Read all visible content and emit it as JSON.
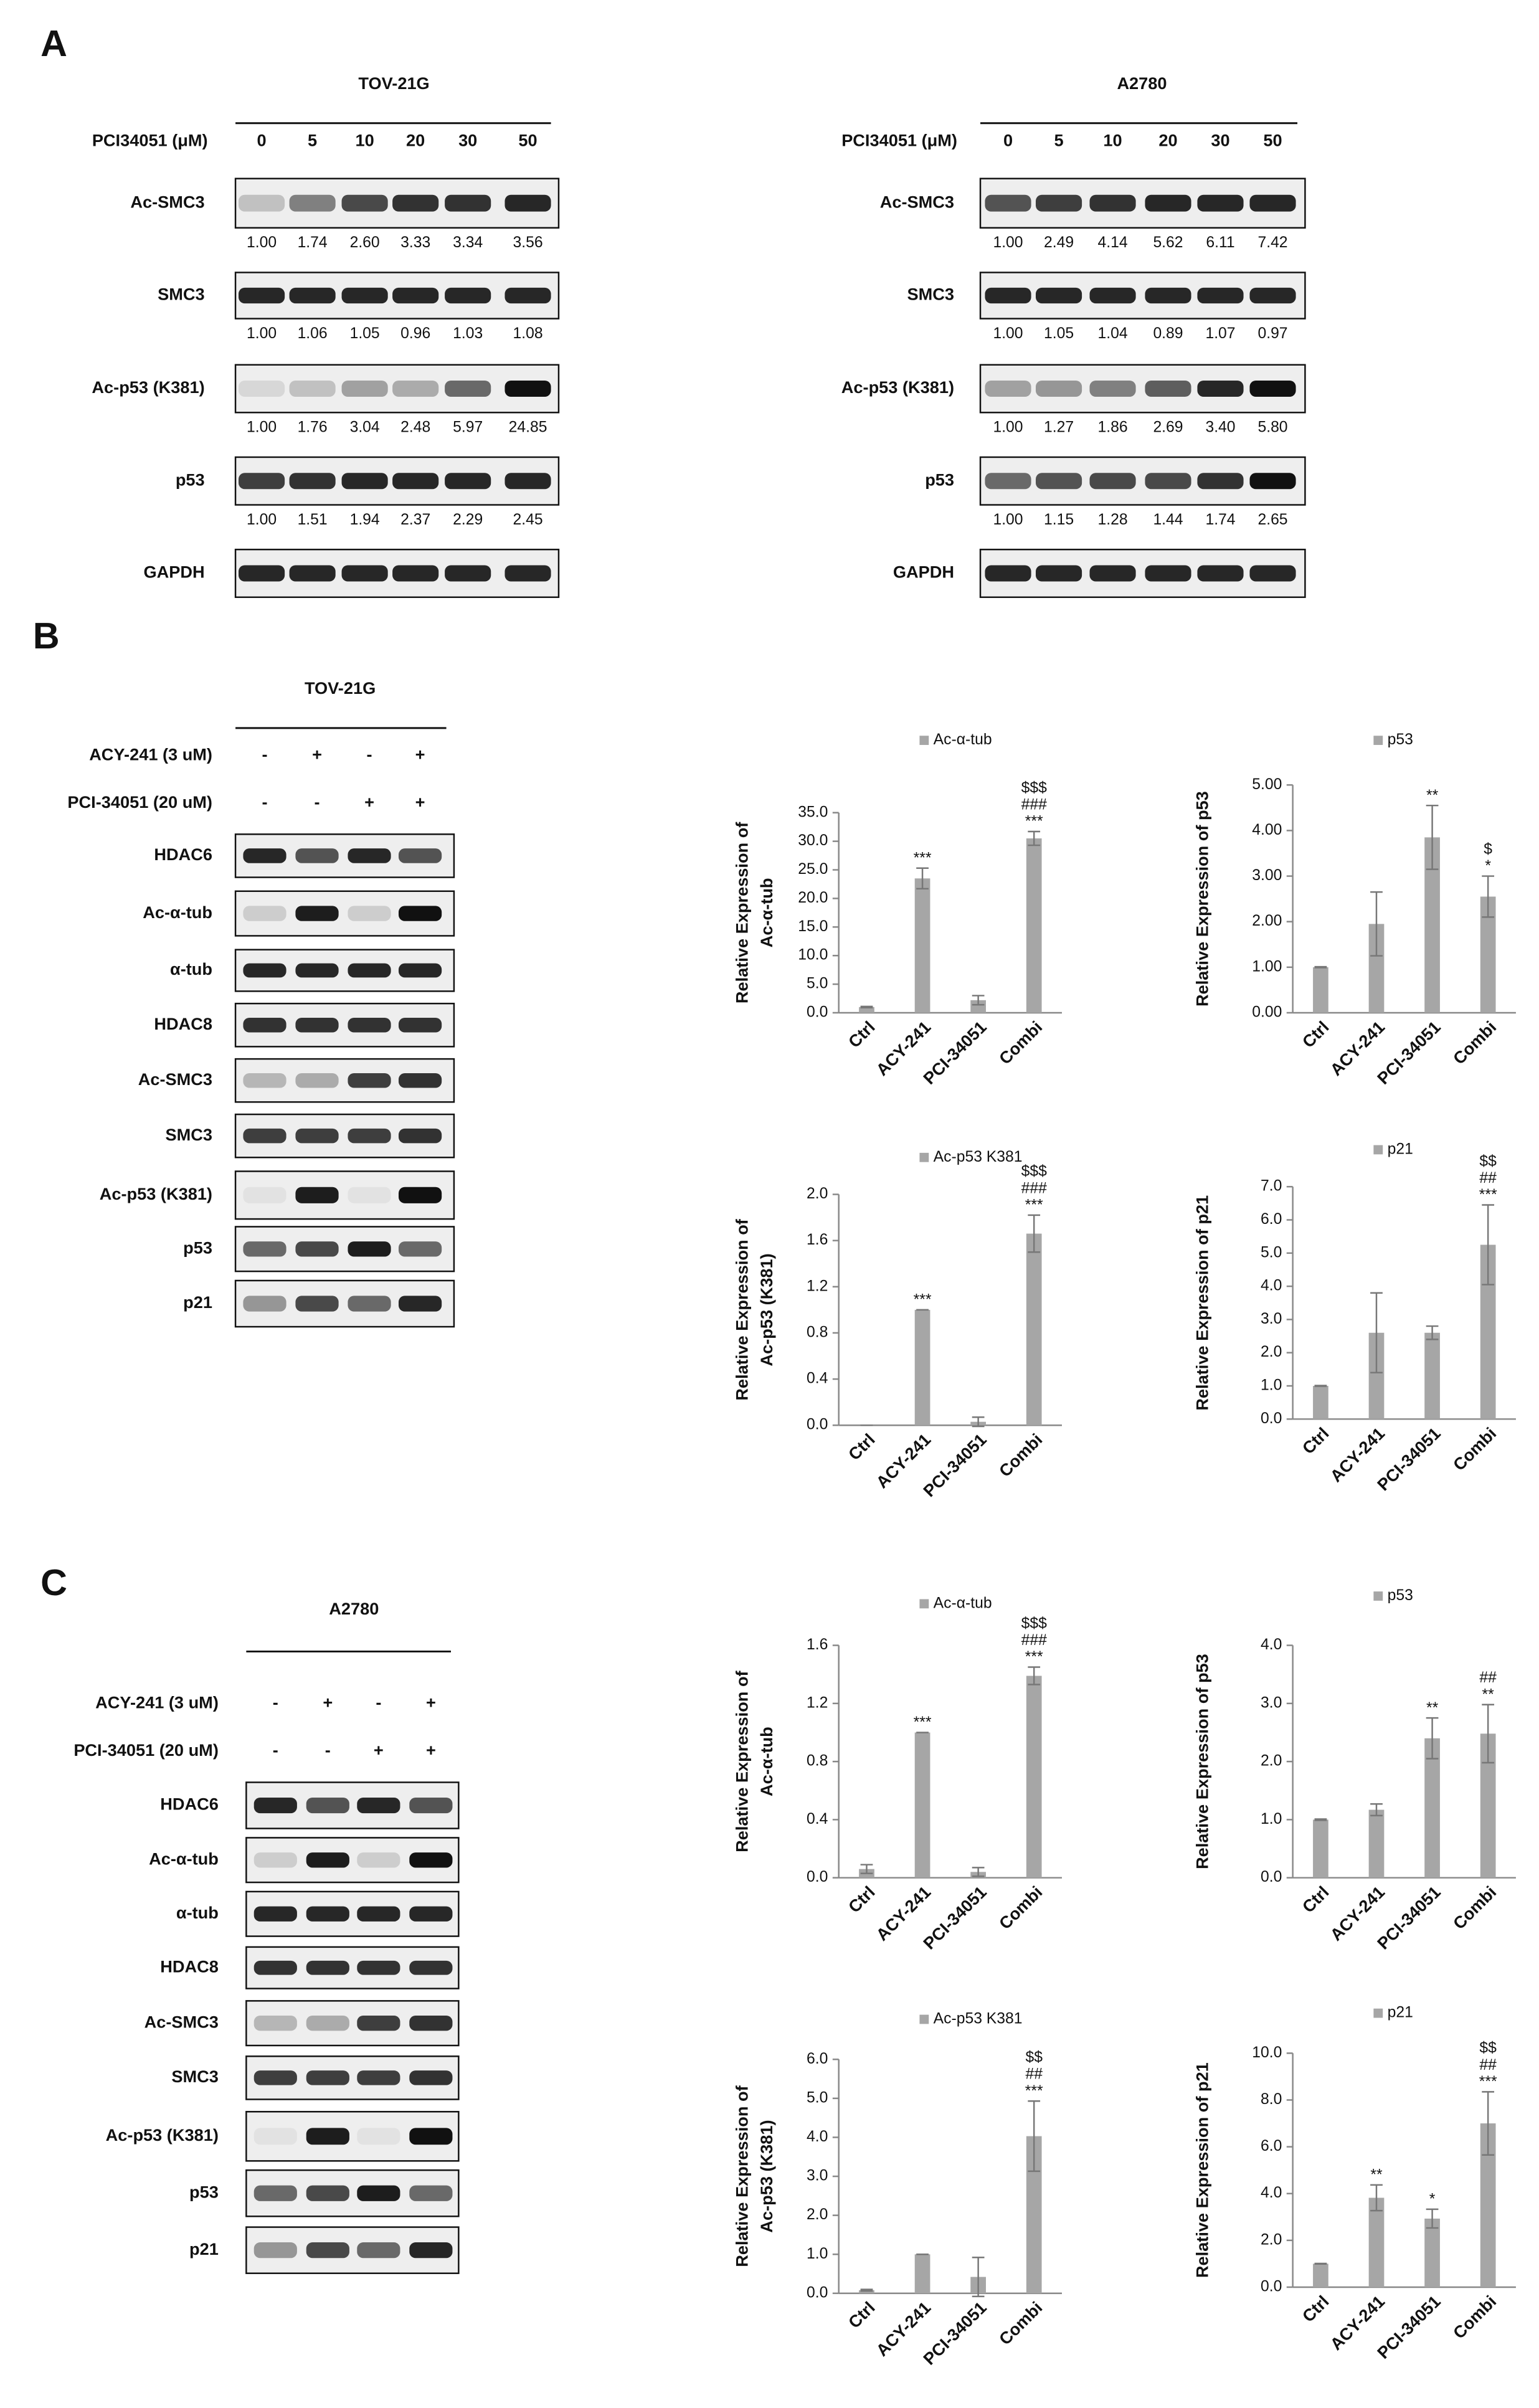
{
  "panels": {
    "A": {
      "label": "A",
      "blots": [
        {
          "cell_line": "TOV-21G",
          "treatment_label": "PCI34051 (μM)",
          "doses": [
            "0",
            "5",
            "10",
            "20",
            "30",
            "50"
          ],
          "rows": [
            {
              "name": "Ac-SMC3",
              "quant": [
                "1.00",
                "1.74",
                "2.60",
                "3.33",
                "3.34",
                "3.56"
              ]
            },
            {
              "name": "SMC3",
              "quant": [
                "1.00",
                "1.06",
                "1.05",
                "0.96",
                "1.03",
                "1.08"
              ]
            },
            {
              "name": "Ac-p53 (K381)",
              "quant": [
                "1.00",
                "1.76",
                "3.04",
                "2.48",
                "5.97",
                "24.85"
              ]
            },
            {
              "name": "p53",
              "quant": [
                "1.00",
                "1.51",
                "1.94",
                "2.37",
                "2.29",
                "2.45"
              ]
            },
            {
              "name": "GAPDH"
            }
          ]
        },
        {
          "cell_line": "A2780",
          "treatment_label": "PCI34051 (μM)",
          "doses": [
            "0",
            "5",
            "10",
            "20",
            "30",
            "50"
          ],
          "rows": [
            {
              "name": "Ac-SMC3",
              "quant": [
                "1.00",
                "2.49",
                "4.14",
                "5.62",
                "6.11",
                "7.42"
              ]
            },
            {
              "name": "SMC3",
              "quant": [
                "1.00",
                "1.05",
                "1.04",
                "0.89",
                "1.07",
                "0.97"
              ]
            },
            {
              "name": "Ac-p53 (K381)",
              "quant": [
                "1.00",
                "1.27",
                "1.86",
                "2.69",
                "3.40",
                "5.80"
              ]
            },
            {
              "name": "p53",
              "quant": [
                "1.00",
                "1.15",
                "1.28",
                "1.44",
                "1.74",
                "2.65"
              ]
            },
            {
              "name": "GAPDH"
            }
          ]
        }
      ]
    },
    "B": {
      "label": "B",
      "blot": {
        "cell_line": "TOV-21G",
        "treatments": [
          {
            "label": "ACY-241 (3 uM)",
            "signs": [
              "-",
              "+",
              "-",
              "+"
            ]
          },
          {
            "label": "PCI-34051 (20 uM)",
            "signs": [
              "-",
              "-",
              "+",
              "+"
            ]
          }
        ],
        "rows": [
          "HDAC6",
          "Ac-α-tub",
          "α-tub",
          "HDAC8",
          "Ac-SMC3",
          "SMC3",
          "Ac-p53 (K381)",
          "p53",
          "p21"
        ]
      }
    },
    "C": {
      "label": "C",
      "blot": {
        "cell_line": "A2780",
        "treatments": [
          {
            "label": "ACY-241 (3 uM)",
            "signs": [
              "-",
              "+",
              "-",
              "+"
            ]
          },
          {
            "label": "PCI-34051 (20 uM)",
            "signs": [
              "-",
              "-",
              "+",
              "+"
            ]
          }
        ],
        "rows": [
          "HDAC6",
          "Ac-α-tub",
          "α-tub",
          "HDAC8",
          "Ac-SMC3",
          "SMC3",
          "Ac-p53 (K381)",
          "p53",
          "p21"
        ]
      }
    }
  },
  "chart_data": [
    {
      "type": "bar",
      "ylabel": [
        "Relative Expression of",
        "Ac-α-tub"
      ],
      "categories": [
        "Ctrl",
        "ACY-241",
        "PCI-34051",
        "Combi"
      ],
      "series": [
        {
          "name": "Ac-α-tub",
          "color": "#a6a6a6",
          "values": [
            1.0,
            23.5,
            2.2,
            30.5
          ],
          "errors": [
            0.1,
            1.8,
            0.8,
            1.2
          ]
        }
      ],
      "annotations": [
        [],
        [
          "***"
        ],
        [],
        [
          "***",
          "###",
          "$$$"
        ]
      ],
      "ylim": [
        0,
        35
      ],
      "yticks": [
        {
          "value": 0,
          "label": "0.0"
        },
        {
          "value": 5,
          "label": "5.0"
        },
        {
          "value": 10,
          "label": "10.0"
        },
        {
          "value": 15,
          "label": "15.0"
        },
        {
          "value": 20,
          "label": "20.0"
        },
        {
          "value": 25,
          "label": "25.0"
        },
        {
          "value": 30,
          "label": "30.0"
        },
        {
          "value": 35,
          "label": "35.0"
        }
      ]
    },
    {
      "type": "bar",
      "ylabel": [
        "Relative Expression of p53"
      ],
      "categories": [
        "Ctrl",
        "ACY-241",
        "PCI-34051",
        "Combi"
      ],
      "series": [
        {
          "name": "p53",
          "color": "#a6a6a6",
          "values": [
            1.0,
            1.95,
            3.85,
            2.55
          ],
          "errors": [
            0.01,
            0.7,
            0.7,
            0.45
          ]
        }
      ],
      "annotations": [
        [],
        [],
        [
          "**"
        ],
        [
          "*",
          "$"
        ]
      ],
      "ylim": [
        0,
        5
      ],
      "yticks": [
        {
          "value": 0,
          "label": "0.00"
        },
        {
          "value": 1,
          "label": "1.00"
        },
        {
          "value": 2,
          "label": "2.00"
        },
        {
          "value": 3,
          "label": "3.00"
        },
        {
          "value": 4,
          "label": "4.00"
        },
        {
          "value": 5,
          "label": "5.00"
        }
      ]
    },
    {
      "type": "bar",
      "ylabel": [
        "Relative Expression of",
        "Ac-p53 (K381)"
      ],
      "categories": [
        "Ctrl",
        "ACY-241",
        "PCI-34051",
        "Combi"
      ],
      "series": [
        {
          "name": "Ac-p53 K381",
          "color": "#a6a6a6",
          "values": [
            0.0,
            1.0,
            0.03,
            1.66
          ],
          "errors": [
            0.0,
            0.0,
            0.04,
            0.16
          ]
        }
      ],
      "annotations": [
        [],
        [
          "***"
        ],
        [],
        [
          "***",
          "###",
          "$$$"
        ]
      ],
      "ylim": [
        0,
        2
      ],
      "yticks": [
        {
          "value": 0,
          "label": "0.0"
        },
        {
          "value": 0.4,
          "label": "0.4"
        },
        {
          "value": 0.8,
          "label": "0.8"
        },
        {
          "value": 1.2,
          "label": "1.2"
        },
        {
          "value": 1.6,
          "label": "1.6"
        },
        {
          "value": 2,
          "label": "2.0"
        }
      ]
    },
    {
      "type": "bar",
      "ylabel": [
        "Relative Expression of p21"
      ],
      "categories": [
        "Ctrl",
        "ACY-241",
        "PCI-34051",
        "Combi"
      ],
      "series": [
        {
          "name": "p21",
          "color": "#a6a6a6",
          "values": [
            1.0,
            2.6,
            2.6,
            5.25
          ],
          "errors": [
            0.01,
            1.2,
            0.2,
            1.2
          ]
        }
      ],
      "annotations": [
        [],
        [],
        [],
        [
          "***",
          "##",
          "$$"
        ]
      ],
      "ylim": [
        0,
        7
      ],
      "yticks": [
        {
          "value": 0,
          "label": "0.0"
        },
        {
          "value": 1,
          "label": "1.0"
        },
        {
          "value": 2,
          "label": "2.0"
        },
        {
          "value": 3,
          "label": "3.0"
        },
        {
          "value": 4,
          "label": "4.0"
        },
        {
          "value": 5,
          "label": "5.0"
        },
        {
          "value": 6,
          "label": "6.0"
        },
        {
          "value": 7,
          "label": "7.0"
        }
      ]
    },
    {
      "type": "bar",
      "ylabel": [
        "Relative Expression of",
        "Ac-α-tub"
      ],
      "categories": [
        "Ctrl",
        "ACY-241",
        "PCI-34051",
        "Combi"
      ],
      "series": [
        {
          "name": "Ac-α-tub",
          "color": "#a6a6a6",
          "values": [
            0.06,
            1.0,
            0.04,
            1.39
          ],
          "errors": [
            0.03,
            0.0,
            0.03,
            0.06
          ]
        }
      ],
      "annotations": [
        [],
        [
          "***"
        ],
        [],
        [
          "***",
          "###",
          "$$$"
        ]
      ],
      "ylim": [
        0,
        1.6
      ],
      "yticks": [
        {
          "value": 0,
          "label": "0.0"
        },
        {
          "value": 0.4,
          "label": "0.4"
        },
        {
          "value": 0.8,
          "label": "0.8"
        },
        {
          "value": 1.2,
          "label": "1.2"
        },
        {
          "value": 1.6,
          "label": "1.6"
        }
      ]
    },
    {
      "type": "bar",
      "ylabel": [
        "Relative Expression of p53"
      ],
      "categories": [
        "Ctrl",
        "ACY-241",
        "PCI-34051",
        "Combi"
      ],
      "series": [
        {
          "name": "p53",
          "color": "#a6a6a6",
          "values": [
            1.0,
            1.17,
            2.4,
            2.48
          ],
          "errors": [
            0.01,
            0.1,
            0.35,
            0.5
          ]
        }
      ],
      "annotations": [
        [],
        [],
        [
          "**"
        ],
        [
          "**",
          "##"
        ]
      ],
      "ylim": [
        0,
        4
      ],
      "yticks": [
        {
          "value": 0,
          "label": "0.0"
        },
        {
          "value": 1,
          "label": "1.0"
        },
        {
          "value": 2,
          "label": "2.0"
        },
        {
          "value": 3,
          "label": "3.0"
        },
        {
          "value": 4,
          "label": "4.0"
        }
      ]
    },
    {
      "type": "bar",
      "ylabel": [
        "Relative Expression of",
        "Ac-p53 (K381)"
      ],
      "categories": [
        "Ctrl",
        "ACY-241",
        "PCI-34051",
        "Combi"
      ],
      "series": [
        {
          "name": "Ac-p53 K381",
          "color": "#a6a6a6",
          "values": [
            0.08,
            1.0,
            0.42,
            4.03
          ],
          "errors": [
            0.02,
            0.0,
            0.5,
            0.9
          ]
        }
      ],
      "annotations": [
        [],
        [],
        [],
        [
          "***",
          "##",
          "$$"
        ]
      ],
      "ylim": [
        0,
        6
      ],
      "yticks": [
        {
          "value": 0,
          "label": "0.0"
        },
        {
          "value": 1,
          "label": "1.0"
        },
        {
          "value": 2,
          "label": "2.0"
        },
        {
          "value": 3,
          "label": "3.0"
        },
        {
          "value": 4,
          "label": "4.0"
        },
        {
          "value": 5,
          "label": "5.0"
        },
        {
          "value": 6,
          "label": "6.0"
        }
      ]
    },
    {
      "type": "bar",
      "ylabel": [
        "Relative Expression of p21"
      ],
      "categories": [
        "Ctrl",
        "ACY-241",
        "PCI-34051",
        "Combi"
      ],
      "series": [
        {
          "name": "p21",
          "color": "#a6a6a6",
          "values": [
            1.0,
            3.82,
            2.93,
            7.0
          ],
          "errors": [
            0.01,
            0.55,
            0.4,
            1.35
          ]
        }
      ],
      "annotations": [
        [],
        [
          "**"
        ],
        [
          "*"
        ],
        [
          "***",
          "##",
          "$$"
        ]
      ],
      "ylim": [
        0,
        10
      ],
      "yticks": [
        {
          "value": 0,
          "label": "0.0"
        },
        {
          "value": 2,
          "label": "2.0"
        },
        {
          "value": 4,
          "label": "4.0"
        },
        {
          "value": 6,
          "label": "6.0"
        },
        {
          "value": 8,
          "label": "8.0"
        },
        {
          "value": 10,
          "label": "10.0"
        }
      ]
    }
  ]
}
